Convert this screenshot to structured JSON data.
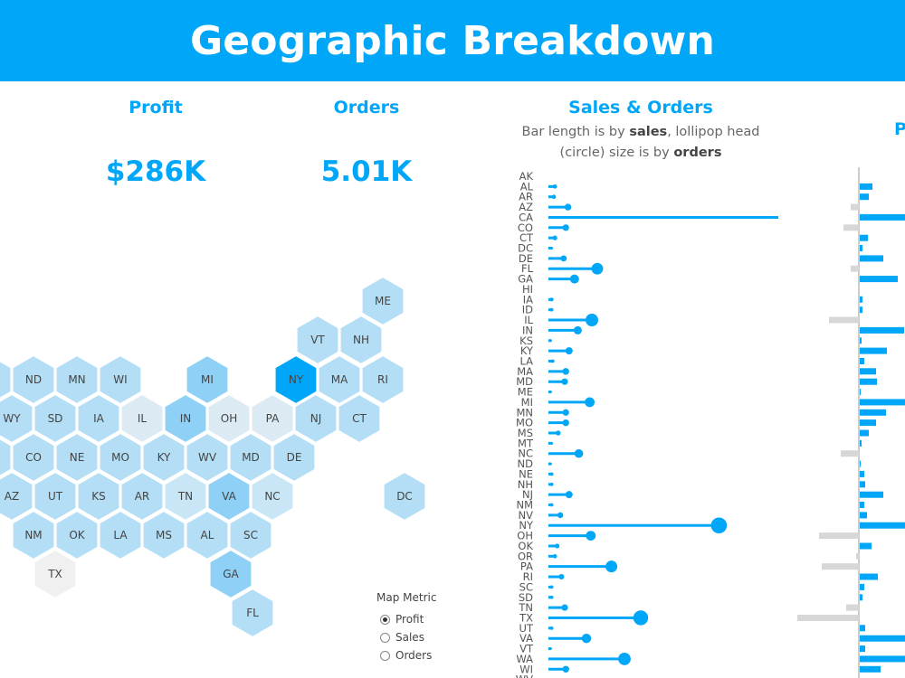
{
  "header": {
    "title": "Geographic Breakdown"
  },
  "kpis": [
    {
      "label": "Profit",
      "value": "$286K"
    },
    {
      "label": "Orders",
      "value": "5.01K"
    }
  ],
  "sales_orders": {
    "title": "Sales & Orders",
    "subtitle_parts": [
      "Bar length is by ",
      "sales",
      ", lollipop head (circle) size is by ",
      "orders"
    ]
  },
  "profit_partial_title": "P",
  "legend": {
    "title": "Map Metric",
    "options": [
      {
        "label": "Profit",
        "selected": true
      },
      {
        "label": "Sales",
        "selected": false
      },
      {
        "label": "Orders",
        "selected": false
      }
    ]
  },
  "colors": {
    "brand": "#00a6f7",
    "hex_shades": [
      "#f0f0f0",
      "#dbeaf3",
      "#c8e6f5",
      "#b3def5",
      "#8fd0f7",
      "#00a6f7"
    ],
    "negative_bar": "#d7d7d7"
  },
  "hex_map": [
    {
      "state": "ME",
      "shade": 3
    },
    {
      "state": "VT",
      "shade": 3
    },
    {
      "state": "NH",
      "shade": 3
    },
    {
      "state": "ND",
      "shade": 3
    },
    {
      "state": "MN",
      "shade": 3
    },
    {
      "state": "WI",
      "shade": 3
    },
    {
      "state": "MI",
      "shade": 4
    },
    {
      "state": "NY",
      "shade": 5
    },
    {
      "state": "MA",
      "shade": 3
    },
    {
      "state": "RI",
      "shade": 3
    },
    {
      "state": "",
      "shade": 3
    },
    {
      "state": "WY",
      "shade": 3
    },
    {
      "state": "SD",
      "shade": 3
    },
    {
      "state": "IA",
      "shade": 3
    },
    {
      "state": "IL",
      "shade": 1
    },
    {
      "state": "IN",
      "shade": 4
    },
    {
      "state": "OH",
      "shade": 1
    },
    {
      "state": "PA",
      "shade": 1
    },
    {
      "state": "NJ",
      "shade": 3
    },
    {
      "state": "CT",
      "shade": 3
    },
    {
      "state": "",
      "shade": 3
    },
    {
      "state": "CO",
      "shade": 3
    },
    {
      "state": "NE",
      "shade": 3
    },
    {
      "state": "MO",
      "shade": 3
    },
    {
      "state": "KY",
      "shade": 3
    },
    {
      "state": "WV",
      "shade": 3
    },
    {
      "state": "MD",
      "shade": 3
    },
    {
      "state": "DE",
      "shade": 3
    },
    {
      "state": "",
      "shade": 3
    },
    {
      "state": "AZ",
      "shade": 3
    },
    {
      "state": "UT",
      "shade": 3
    },
    {
      "state": "KS",
      "shade": 3
    },
    {
      "state": "AR",
      "shade": 3
    },
    {
      "state": "TN",
      "shade": 2
    },
    {
      "state": "VA",
      "shade": 4
    },
    {
      "state": "NC",
      "shade": 2
    },
    {
      "state": "DC",
      "shade": 3
    },
    {
      "state": "NM",
      "shade": 3
    },
    {
      "state": "OK",
      "shade": 3
    },
    {
      "state": "LA",
      "shade": 3
    },
    {
      "state": "MS",
      "shade": 3
    },
    {
      "state": "AL",
      "shade": 3
    },
    {
      "state": "SC",
      "shade": 3
    },
    {
      "state": "TX",
      "shade": 0
    },
    {
      "state": "GA",
      "shade": 4
    },
    {
      "state": "FL",
      "shade": 3
    }
  ],
  "chart_data": [
    {
      "type": "bar",
      "title": "Sales & Orders",
      "subtitle": "Bar length is by sales, lollipop head (circle) size is by orders",
      "categories": [
        "AK",
        "AL",
        "AR",
        "AZ",
        "CA",
        "CO",
        "CT",
        "DC",
        "DE",
        "FL",
        "GA",
        "HI",
        "IA",
        "ID",
        "IL",
        "IN",
        "KS",
        "KY",
        "LA",
        "MA",
        "MD",
        "ME",
        "MI",
        "MN",
        "MO",
        "MS",
        "MT",
        "NC",
        "ND",
        "NE",
        "NH",
        "NJ",
        "NM",
        "NV",
        "NY",
        "OH",
        "OK",
        "OR",
        "PA",
        "RI",
        "SC",
        "SD",
        "TN",
        "TX",
        "UT",
        "VA",
        "VT",
        "WA",
        "WI",
        "WV"
      ],
      "series": [
        {
          "name": "sales",
          "values": [
            0,
            6,
            5,
            18,
            232,
            16,
            6,
            3,
            14,
            45,
            24,
            0,
            3,
            3,
            40,
            27,
            2,
            19,
            4,
            16,
            15,
            2,
            38,
            16,
            16,
            9,
            3,
            28,
            2,
            3,
            3,
            19,
            3,
            11,
            157,
            39,
            8,
            6,
            58,
            12,
            3,
            3,
            15,
            85,
            3,
            35,
            2,
            70,
            16,
            3
          ]
        },
        {
          "name": "orders",
          "values": [
            0,
            12,
            12,
            30,
            200,
            28,
            15,
            5,
            25,
            90,
            55,
            0,
            10,
            8,
            110,
            45,
            5,
            35,
            8,
            30,
            28,
            5,
            65,
            28,
            30,
            16,
            5,
            50,
            5,
            8,
            8,
            35,
            8,
            22,
            170,
            65,
            15,
            12,
            95,
            20,
            8,
            8,
            28,
            150,
            8,
            60,
            5,
            105,
            30,
            5
          ]
        }
      ]
    },
    {
      "type": "bar",
      "title": "P",
      "categories": [
        "AK",
        "AL",
        "AR",
        "AZ",
        "CA",
        "CO",
        "CT",
        "DC",
        "DE",
        "FL",
        "GA",
        "HI",
        "IA",
        "ID",
        "IL",
        "IN",
        "KS",
        "KY",
        "LA",
        "MA",
        "MD",
        "ME",
        "MI",
        "MN",
        "MO",
        "MS",
        "MT",
        "NC",
        "ND",
        "NE",
        "NH",
        "NJ",
        "NM",
        "NV",
        "NY",
        "OH",
        "OK",
        "OR",
        "PA",
        "RI",
        "SC",
        "SD",
        "TN",
        "TX",
        "UT",
        "VA",
        "VT",
        "WA",
        "WI",
        "WV"
      ],
      "values": [
        0,
        14,
        10,
        -9,
        55,
        -17,
        9,
        3,
        26,
        -9,
        42,
        0,
        3,
        3,
        -33,
        49,
        2,
        30,
        5,
        18,
        19,
        1,
        56,
        29,
        18,
        10,
        2,
        -20,
        1,
        5,
        6,
        26,
        5,
        8,
        64,
        -44,
        13,
        -3,
        -41,
        20,
        5,
        3,
        -14,
        -68,
        6,
        60,
        6,
        63,
        23,
        0
      ]
    }
  ]
}
